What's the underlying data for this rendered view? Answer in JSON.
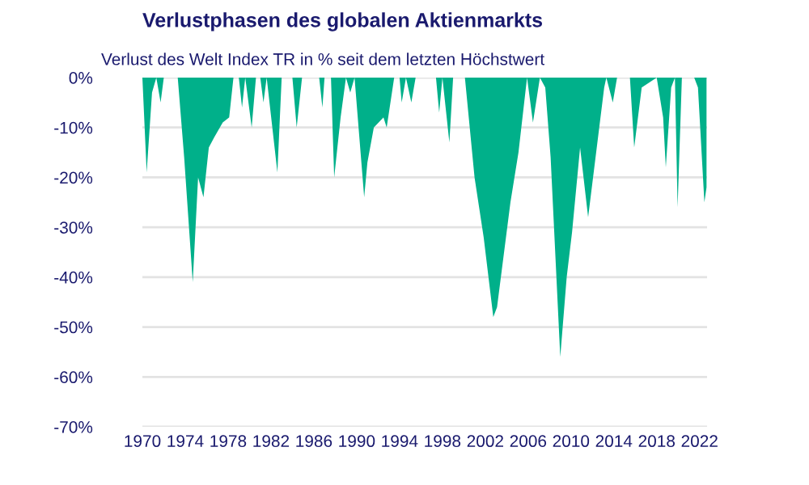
{
  "chart_data": {
    "type": "area",
    "title": "Verlustphasen des globalen Aktienmarkts",
    "subtitle": "Verlust des Welt Index TR in % seit dem letzten Höchstwert",
    "x": [
      1970.0,
      1970.4,
      1970.9,
      1971.3,
      1971.7,
      1972.0,
      1973.3,
      1973.9,
      1974.7,
      1975.2,
      1975.7,
      1976.2,
      1976.7,
      1977.5,
      1978.1,
      1978.5,
      1979.0,
      1979.3,
      1979.6,
      1980.2,
      1980.6,
      1981.0,
      1981.3,
      1981.6,
      1982.6,
      1983.0,
      1984.0,
      1984.4,
      1984.9,
      1986.5,
      1986.8,
      1987.0,
      1987.6,
      1987.9,
      1988.5,
      1989.0,
      1989.4,
      1989.8,
      1990.7,
      1991.0,
      1991.6,
      1992.5,
      1992.8,
      1993.5,
      1994.0,
      1994.2,
      1994.6,
      1995.1,
      1995.5,
      1997.4,
      1997.7,
      1998.0,
      1998.65,
      1999.0,
      2000.1,
      2001.0,
      2001.85,
      2002.75,
      2003.1,
      2004.35,
      2005.1,
      2005.9,
      2006.45,
      2007.1,
      2007.6,
      2008.1,
      2009.0,
      2009.6,
      2010.1,
      2010.85,
      2011.6,
      2012.35,
      2013.1,
      2013.3,
      2013.9,
      2014.3,
      2015.5,
      2015.9,
      2016.6,
      2018.0,
      2018.6,
      2018.85,
      2019.35,
      2019.7,
      2019.95,
      2020.35,
      2021.5,
      2021.85,
      2022.45,
      2022.65
    ],
    "values": [
      0,
      -19,
      -3,
      0,
      -5,
      0,
      0,
      -16,
      -41,
      -20,
      -24,
      -14,
      -12,
      -9,
      -8,
      0,
      0,
      -6,
      0,
      -10,
      0,
      0,
      -5,
      0,
      -19,
      0,
      0,
      -10,
      0,
      0,
      -6,
      0,
      0,
      -20,
      -8,
      0,
      -3,
      0,
      -24,
      -17,
      -10,
      -8,
      -10,
      0,
      0,
      -5,
      0,
      -5,
      0,
      0,
      -7,
      0,
      -13,
      0,
      0,
      -20,
      -32,
      -48,
      -46,
      -25,
      -15,
      0,
      -9,
      0,
      -2,
      -16,
      -56,
      -40,
      -31,
      -14,
      -28,
      -15,
      -2,
      0,
      -5,
      0,
      0,
      -14,
      -2,
      0,
      -8,
      -18,
      -2,
      0,
      -26,
      0,
      0,
      -2,
      -25,
      -22
    ],
    "color": "#00b08a",
    "xlim": [
      1970,
      2022.7
    ],
    "ylim": [
      -70,
      0
    ],
    "xticks": [
      1970,
      1974,
      1978,
      1982,
      1986,
      1990,
      1994,
      1998,
      2002,
      2006,
      2010,
      2014,
      2018,
      2022
    ],
    "yticks": [
      {
        "value": 0,
        "label": "0%"
      },
      {
        "value": -10,
        "label": "-10%"
      },
      {
        "value": -20,
        "label": "-20%"
      },
      {
        "value": -30,
        "label": "-30%"
      },
      {
        "value": -40,
        "label": "-40%"
      },
      {
        "value": -50,
        "label": "-50%"
      },
      {
        "value": -60,
        "label": "-60%"
      },
      {
        "value": -70,
        "label": "-70%"
      }
    ],
    "grid": "y"
  }
}
